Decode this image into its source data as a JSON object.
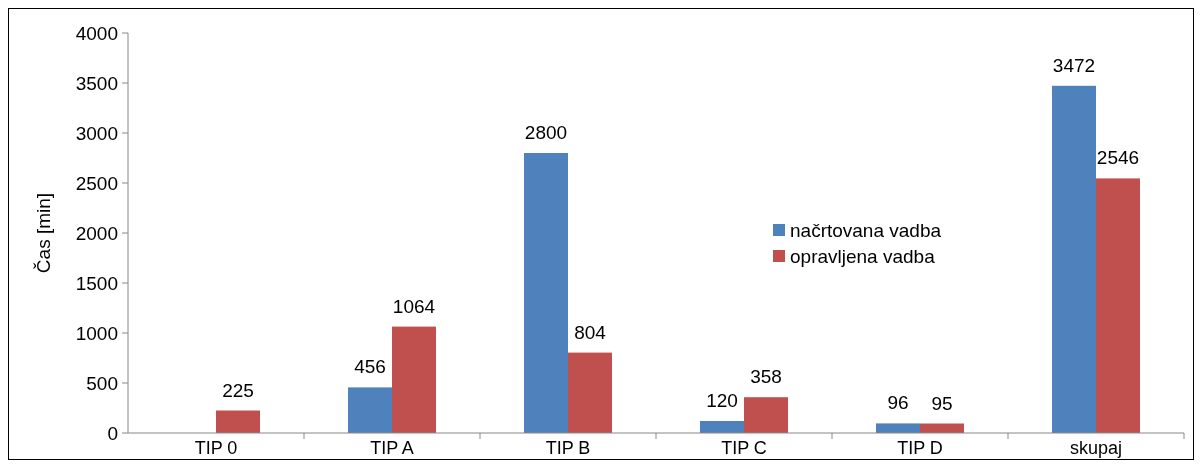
{
  "chart_data": {
    "type": "bar",
    "ylabel": "Čas [min]",
    "categories": [
      "TIP 0",
      "TIP A",
      "TIP B",
      "TIP C",
      "TIP D",
      "skupaj"
    ],
    "series": [
      {
        "name": "načrtovana vadba",
        "color": "#4f81bd",
        "values": [
          null,
          456,
          2800,
          120,
          96,
          3472
        ]
      },
      {
        "name": "opravljena vadba",
        "color": "#c0504d",
        "values": [
          225,
          1064,
          804,
          358,
          95,
          2546
        ]
      }
    ],
    "ylim": [
      0,
      4000
    ],
    "yticks": [
      0,
      500,
      1000,
      1500,
      2000,
      2500,
      3000,
      3500,
      4000
    ],
    "grid": false,
    "legend": "right",
    "data_labels": true
  }
}
